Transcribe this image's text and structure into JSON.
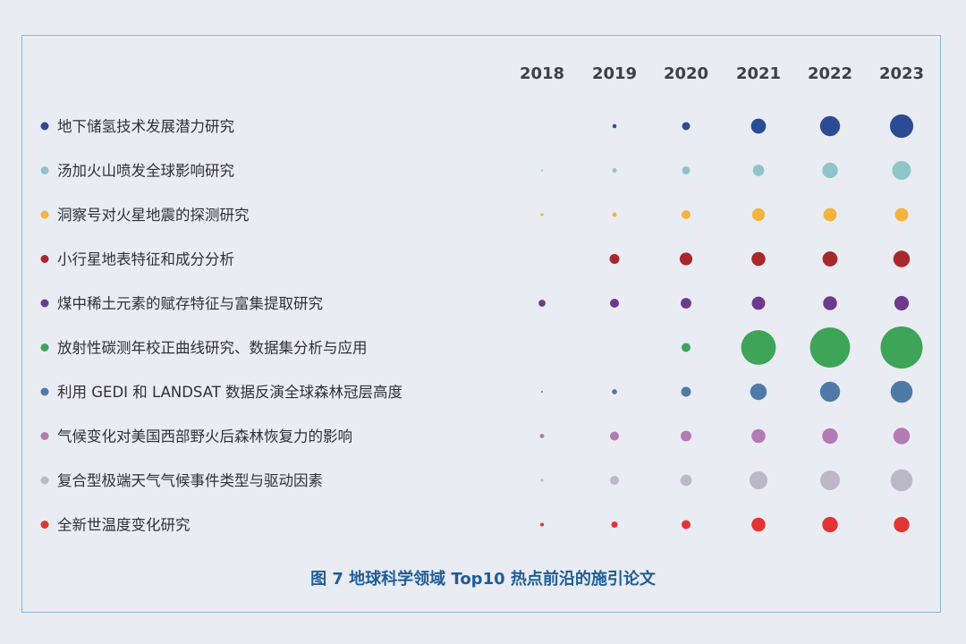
{
  "chart_data": {
    "type": "bubble",
    "title": "图 7  地球科学领域 Top10 热点前沿的施引论文",
    "years": [
      "2018",
      "2019",
      "2020",
      "2021",
      "2022",
      "2023"
    ],
    "series": [
      {
        "name": "地下储氢技术发展潜力研究",
        "color": "#2b4c95",
        "values": [
          0,
          1,
          4,
          14,
          25,
          34
        ]
      },
      {
        "name": "汤加火山喷发全球影响研究",
        "color": "#8fc4c9",
        "values": [
          0.2,
          1.2,
          4,
          8,
          15,
          22
        ]
      },
      {
        "name": "洞察号对火星地震的探测研究",
        "color": "#f3b33d",
        "values": [
          0.5,
          1.2,
          5,
          10,
          11,
          11
        ]
      },
      {
        "name": "小行星地表特征和成分分析",
        "color": "#a8282c",
        "values": [
          0,
          6,
          10,
          12,
          14,
          17
        ]
      },
      {
        "name": "煤中稀土元素的赋存特征与富集提取研究",
        "color": "#6e3a8e",
        "values": [
          3,
          5,
          7,
          11,
          12,
          13
        ]
      },
      {
        "name": "放射性碳测年校正曲线研究、数据集分析与应用",
        "color": "#3da458",
        "values": [
          0,
          0,
          5,
          75,
          100,
          110
        ]
      },
      {
        "name": "利用 GEDI 和 LANDSAT 数据反演全球森林冠层高度",
        "color": "#5079a8",
        "values": [
          0.2,
          1.6,
          6,
          17,
          25,
          30
        ]
      },
      {
        "name": "气候变化对美国西部野火后森林恢复力的影响",
        "color": "#b27bb3",
        "values": [
          1.2,
          5,
          7,
          12,
          15,
          17
        ]
      },
      {
        "name": "复合型极端天气气候事件类型与驱动因素",
        "color": "#bcb8c8",
        "values": [
          0.5,
          5,
          8,
          20,
          24,
          30
        ]
      },
      {
        "name": "全新世温度变化研究",
        "color": "#e23434",
        "values": [
          0.8,
          2.5,
          5,
          12,
          15,
          15
        ]
      }
    ]
  }
}
